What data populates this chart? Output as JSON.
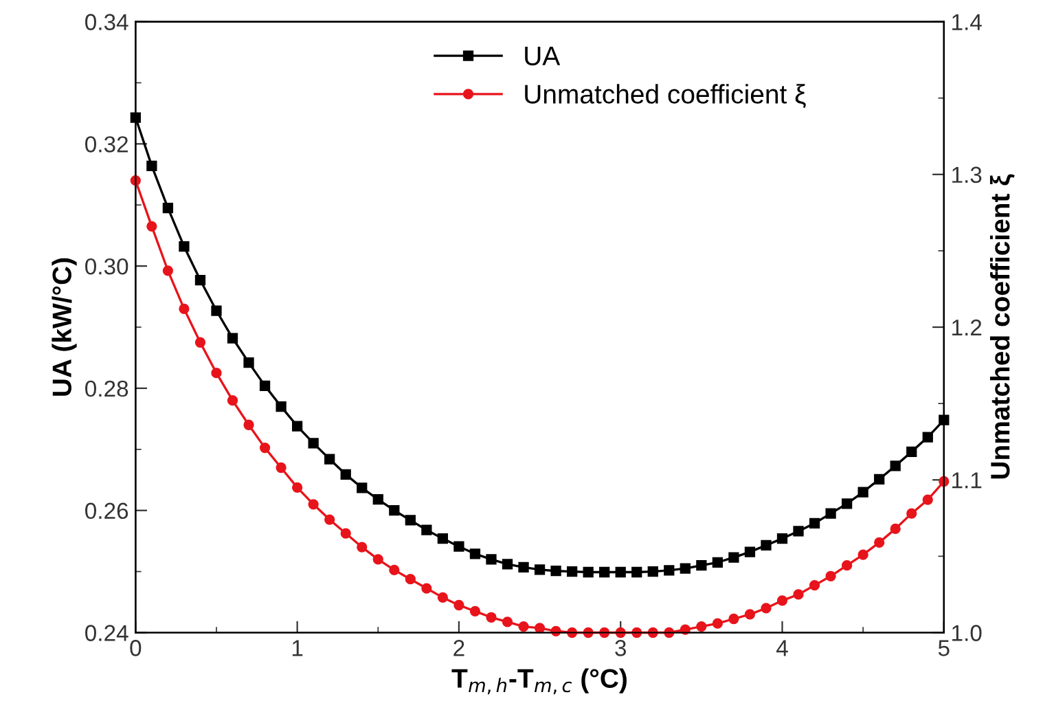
{
  "chart_data": {
    "type": "line",
    "xlabel": "T$_{m,h}$-T$_{m,c}$ (°C)",
    "ylabel": "UA (kW/°C)",
    "y2label": "Unmatched coefficient ξ",
    "x": [
      0,
      0.1,
      0.2,
      0.3,
      0.4,
      0.5,
      0.6,
      0.7,
      0.8,
      0.9,
      1,
      1.1,
      1.2,
      1.3,
      1.4,
      1.5,
      1.6,
      1.7,
      1.8,
      1.9,
      2,
      2.1,
      2.2,
      2.3,
      2.4,
      2.5,
      2.6,
      2.7,
      2.8,
      2.9,
      3,
      3.1,
      3.2,
      3.3,
      3.4,
      3.5,
      3.6,
      3.7,
      3.8,
      3.9,
      4,
      4.1,
      4.2,
      4.3,
      4.4,
      4.5,
      4.6,
      4.7,
      4.8,
      4.9,
      5
    ],
    "series": [
      {
        "name": "UA",
        "color": "#000000",
        "marker": "square",
        "values": [
          0.3243,
          0.3164,
          0.3095,
          0.3032,
          0.2977,
          0.2927,
          0.2882,
          0.2842,
          0.2804,
          0.277,
          0.2738,
          0.271,
          0.2684,
          0.2659,
          0.2637,
          0.2618,
          0.26,
          0.2584,
          0.2568,
          0.2554,
          0.2541,
          0.2529,
          0.252,
          0.2512,
          0.2507,
          0.2503,
          0.2501,
          0.25,
          0.2499,
          0.2499,
          0.2499,
          0.2499,
          0.25,
          0.2502,
          0.2505,
          0.251,
          0.2515,
          0.2523,
          0.2532,
          0.2543,
          0.2554,
          0.2566,
          0.2579,
          0.2595,
          0.2611,
          0.263,
          0.2651,
          0.2673,
          0.2696,
          0.272,
          0.2748
        ]
      },
      {
        "name": "Unmatched coefficient ξ",
        "color": "#e8141b",
        "marker": "circle",
        "axis": "y2",
        "values": [
          1.296,
          1.266,
          1.237,
          1.212,
          1.19,
          1.17,
          1.152,
          1.136,
          1.121,
          1.108,
          1.095,
          1.084,
          1.074,
          1.065,
          1.056,
          1.048,
          1.041,
          1.035,
          1.029,
          1.023,
          1.018,
          1.014,
          1.01,
          1.007,
          1.004,
          1.003,
          1.001,
          1.0,
          1.0,
          1.0,
          1.0,
          1.0,
          1.0,
          1.0,
          1.002,
          1.004,
          1.006,
          1.009,
          1.012,
          1.016,
          1.021,
          1.025,
          1.031,
          1.037,
          1.044,
          1.051,
          1.059,
          1.068,
          1.078,
          1.087,
          1.099
        ]
      }
    ],
    "xlim": [
      0,
      5
    ],
    "xticks": [
      0,
      1,
      2,
      3,
      4,
      5
    ],
    "ylim": [
      0.24,
      0.34
    ],
    "yticks": [
      0.24,
      0.26,
      0.28,
      {
        "value": 0.3,
        "label": "0.30"
      },
      0.32,
      0.34
    ],
    "y2lim": [
      1.0,
      1.4
    ],
    "y2ticks": [
      {
        "value": 1,
        "label": "1.0"
      },
      1.1,
      1.2,
      1.3,
      1.4
    ],
    "legend": "top",
    "grid": false,
    "line_style": "solid"
  }
}
